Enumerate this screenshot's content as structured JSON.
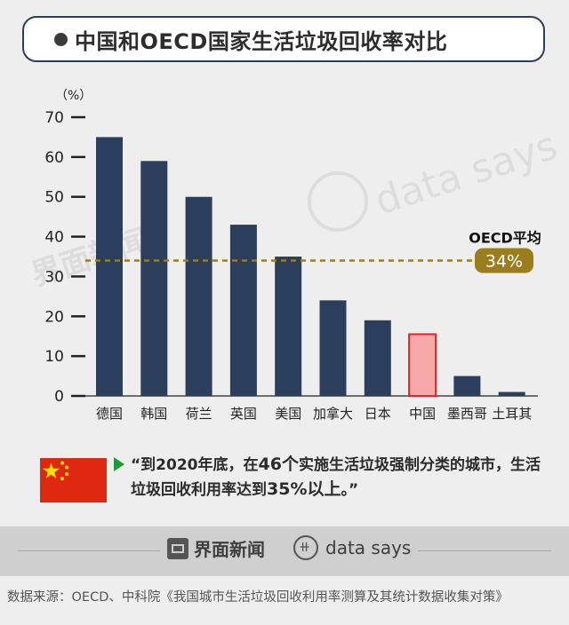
{
  "title": "中国和OECD国家生活垃圾回收率对比",
  "chart_data": {
    "type": "bar",
    "unit_label": "（%）",
    "categories": [
      "德国",
      "韩国",
      "荷兰",
      "英国",
      "美国",
      "加拿大",
      "日本",
      "中国",
      "墨西哥",
      "土耳其"
    ],
    "values": [
      65,
      59,
      50,
      43,
      35,
      24,
      19,
      15.5,
      5,
      1
    ],
    "highlight_category": "中国",
    "ylim": [
      0,
      70
    ],
    "yticks": [
      0,
      10,
      20,
      30,
      40,
      50,
      60,
      70
    ],
    "reference_line": {
      "label": "OECD平均",
      "value": 34,
      "value_label": "34%"
    },
    "colors": {
      "bar": "#2b3e5c",
      "highlight_bar": "#f7a8a8",
      "highlight_border": "#e0242b",
      "reference": "#9a7d1c"
    }
  },
  "watermark": {
    "brand_cn": "界面新闻",
    "brand_en": "data says"
  },
  "quote": {
    "open": "“到2020年底，在",
    "hl1": "46个",
    "mid": "实施生活垃圾强制分类的城市，生活垃圾回收利用率达到",
    "hl2": "35%以上",
    "close": "。”"
  },
  "footer": {
    "brand_cn": "界面新闻",
    "brand_en": "data says"
  },
  "source": "数据来源：OECD、中科院《我国城市生活垃圾回收利用率测算及其统计数据收集对策》"
}
